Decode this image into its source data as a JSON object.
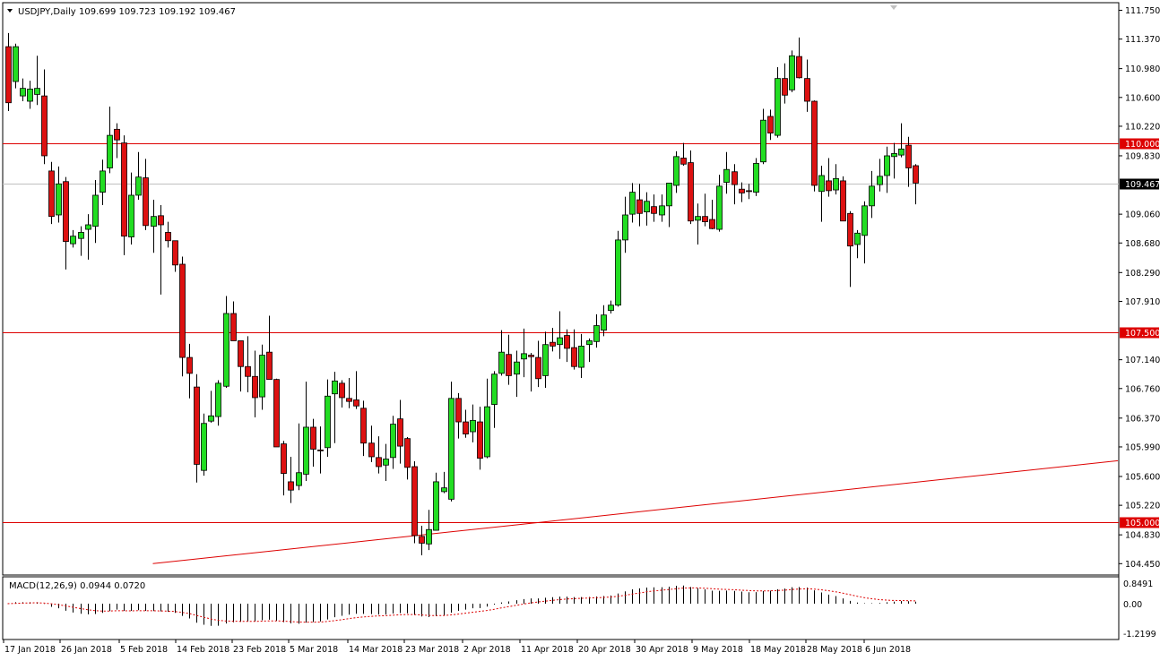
{
  "header": {
    "symbol_label": "USDJPY,Daily",
    "ohlc": "109.699 109.723 109.192 109.467"
  },
  "macd": {
    "label": "MACD(12,26,9) 0.0944 0.0720",
    "axis": [
      "0.8491",
      "0.00",
      "-1.2199"
    ]
  },
  "colors": {
    "bull": "#22dd22",
    "bear": "#dd1111",
    "level_line": "#dd0000",
    "trend_line": "#dd0000",
    "price_line": "#c0c0c0",
    "macd_hist": "#000000",
    "macd_signal": "#dd0000"
  },
  "chart_data": {
    "type": "candlestick",
    "symbol": "USDJPY",
    "timeframe": "Daily",
    "ylim": [
      104.3,
      111.85
    ],
    "price_ticks": [
      "111.750",
      "111.370",
      "110.980",
      "110.600",
      "110.220",
      "109.830",
      "109.060",
      "108.680",
      "108.290",
      "107.910",
      "107.140",
      "106.760",
      "106.370",
      "105.990",
      "105.600",
      "105.220",
      "104.830",
      "104.450"
    ],
    "date_labels": [
      "17 Jan 2018",
      "26 Jan 2018",
      "5 Feb 2018",
      "14 Feb 2018",
      "23 Feb 2018",
      "5 Mar 2018",
      "14 Mar 2018",
      "23 Mar 2018",
      "2 Apr 2018",
      "11 Apr 2018",
      "20 Apr 2018",
      "30 Apr 2018",
      "9 May 2018",
      "18 May 2018",
      "28 May 2018",
      "6 Jun 2018"
    ],
    "horizontal_levels": [
      "110.000",
      "107.500",
      "105.000"
    ],
    "current_price": "109.467",
    "trendline": [
      {
        "bar": 20,
        "price": 104.45
      },
      {
        "bar": 157,
        "price": 105.85
      }
    ],
    "candles": [
      [
        111.27,
        111.45,
        110.42,
        110.53
      ],
      [
        110.81,
        111.31,
        110.72,
        111.27
      ],
      [
        110.62,
        110.85,
        110.55,
        110.72
      ],
      [
        110.55,
        110.82,
        110.45,
        110.71
      ],
      [
        110.64,
        111.15,
        110.5,
        110.72
      ],
      [
        110.62,
        110.97,
        109.72,
        109.83
      ],
      [
        109.63,
        109.75,
        108.93,
        109.03
      ],
      [
        109.05,
        109.69,
        108.95,
        109.46
      ],
      [
        109.49,
        109.55,
        108.33,
        108.7
      ],
      [
        108.67,
        108.85,
        108.62,
        108.77
      ],
      [
        108.74,
        108.9,
        108.51,
        108.82
      ],
      [
        108.86,
        109.06,
        108.46,
        108.92
      ],
      [
        108.9,
        109.51,
        108.68,
        109.31
      ],
      [
        109.35,
        109.78,
        109.18,
        109.63
      ],
      [
        109.67,
        110.48,
        109.6,
        110.1
      ],
      [
        110.18,
        110.26,
        109.8,
        110.04
      ],
      [
        110.0,
        110.1,
        108.52,
        108.77
      ],
      [
        108.76,
        109.61,
        108.66,
        109.31
      ],
      [
        109.31,
        109.88,
        109.25,
        109.55
      ],
      [
        109.54,
        109.79,
        108.85,
        108.91
      ],
      [
        108.9,
        109.25,
        108.55,
        109.03
      ],
      [
        109.04,
        109.18,
        108.0,
        108.92
      ],
      [
        108.82,
        108.96,
        108.62,
        108.71
      ],
      [
        108.71,
        108.71,
        108.3,
        108.39
      ],
      [
        108.4,
        108.5,
        106.92,
        107.17
      ],
      [
        107.17,
        107.35,
        106.63,
        106.96
      ],
      [
        106.78,
        106.95,
        105.52,
        105.76
      ],
      [
        105.68,
        106.43,
        105.61,
        106.3
      ],
      [
        106.33,
        106.73,
        106.31,
        106.4
      ],
      [
        106.39,
        106.87,
        106.27,
        106.83
      ],
      [
        106.79,
        107.98,
        106.77,
        107.75
      ],
      [
        107.75,
        107.91,
        107.39,
        107.39
      ],
      [
        107.39,
        107.39,
        106.72,
        107.05
      ],
      [
        107.05,
        107.45,
        106.71,
        106.92
      ],
      [
        106.92,
        107.26,
        106.38,
        106.64
      ],
      [
        106.65,
        107.34,
        106.48,
        107.2
      ],
      [
        107.24,
        107.72,
        106.88,
        106.88
      ],
      [
        106.88,
        106.89,
        105.99,
        105.99
      ],
      [
        106.03,
        106.07,
        105.35,
        105.64
      ],
      [
        105.53,
        105.86,
        105.25,
        105.42
      ],
      [
        105.48,
        106.3,
        105.42,
        105.65
      ],
      [
        105.63,
        106.85,
        105.54,
        106.25
      ],
      [
        106.25,
        106.36,
        105.73,
        105.96
      ],
      [
        105.95,
        106.26,
        105.64,
        105.94
      ],
      [
        105.98,
        106.88,
        105.86,
        106.66
      ],
      [
        106.69,
        106.98,
        106.04,
        106.86
      ],
      [
        106.83,
        106.87,
        106.51,
        106.64
      ],
      [
        106.63,
        106.9,
        106.5,
        106.59
      ],
      [
        106.61,
        106.99,
        106.49,
        106.53
      ],
      [
        106.5,
        106.6,
        105.87,
        106.04
      ],
      [
        106.04,
        106.27,
        105.79,
        105.86
      ],
      [
        105.85,
        106.13,
        105.64,
        105.73
      ],
      [
        105.75,
        106.03,
        105.54,
        105.83
      ],
      [
        105.85,
        106.4,
        105.7,
        106.29
      ],
      [
        106.36,
        106.61,
        105.77,
        106.0
      ],
      [
        106.1,
        106.12,
        105.56,
        105.72
      ],
      [
        105.73,
        105.8,
        104.72,
        104.82
      ],
      [
        104.81,
        104.95,
        104.56,
        104.72
      ],
      [
        104.71,
        105.16,
        104.63,
        104.9
      ],
      [
        104.89,
        105.65,
        104.89,
        105.53
      ],
      [
        105.4,
        105.66,
        105.38,
        105.45
      ],
      [
        105.3,
        106.85,
        105.27,
        106.63
      ],
      [
        106.63,
        106.7,
        106.1,
        106.32
      ],
      [
        106.32,
        106.48,
        106.11,
        106.16
      ],
      [
        106.19,
        106.55,
        106.05,
        106.34
      ],
      [
        106.32,
        106.52,
        105.69,
        105.84
      ],
      [
        105.86,
        106.89,
        105.84,
        106.52
      ],
      [
        106.55,
        106.99,
        106.24,
        106.95
      ],
      [
        106.96,
        107.53,
        106.93,
        107.24
      ],
      [
        107.21,
        107.47,
        106.81,
        106.93
      ],
      [
        106.95,
        107.26,
        106.65,
        107.11
      ],
      [
        107.15,
        107.55,
        106.91,
        107.22
      ],
      [
        107.2,
        107.23,
        106.72,
        107.18
      ],
      [
        107.17,
        107.39,
        106.78,
        106.89
      ],
      [
        106.93,
        107.51,
        106.77,
        107.34
      ],
      [
        107.37,
        107.56,
        107.25,
        107.32
      ],
      [
        107.34,
        107.78,
        107.15,
        107.43
      ],
      [
        107.46,
        107.54,
        107.11,
        107.29
      ],
      [
        107.3,
        107.54,
        107.01,
        107.05
      ],
      [
        107.04,
        107.48,
        106.9,
        107.32
      ],
      [
        107.34,
        107.42,
        107.11,
        107.39
      ],
      [
        107.38,
        107.74,
        107.3,
        107.59
      ],
      [
        107.53,
        107.86,
        107.45,
        107.73
      ],
      [
        107.79,
        107.92,
        107.75,
        107.86
      ],
      [
        107.86,
        108.84,
        107.84,
        108.72
      ],
      [
        108.72,
        109.29,
        108.55,
        109.05
      ],
      [
        109.06,
        109.47,
        108.95,
        109.35
      ],
      [
        109.25,
        109.46,
        108.9,
        109.07
      ],
      [
        109.09,
        109.35,
        108.91,
        109.23
      ],
      [
        109.16,
        109.32,
        108.96,
        109.07
      ],
      [
        109.05,
        109.32,
        108.96,
        109.17
      ],
      [
        109.17,
        109.44,
        108.89,
        109.47
      ],
      [
        109.44,
        109.89,
        109.34,
        109.82
      ],
      [
        109.8,
        110.0,
        109.7,
        109.72
      ],
      [
        109.74,
        109.9,
        108.93,
        108.97
      ],
      [
        108.98,
        109.2,
        108.66,
        109.03
      ],
      [
        109.03,
        109.33,
        108.9,
        108.96
      ],
      [
        108.99,
        109.25,
        108.86,
        108.87
      ],
      [
        108.86,
        109.58,
        108.83,
        109.43
      ],
      [
        109.48,
        109.88,
        109.33,
        109.65
      ],
      [
        109.62,
        109.72,
        109.19,
        109.45
      ],
      [
        109.39,
        109.48,
        109.22,
        109.34
      ],
      [
        109.37,
        109.46,
        109.26,
        109.36
      ],
      [
        109.35,
        109.8,
        109.3,
        109.73
      ],
      [
        109.75,
        110.45,
        109.72,
        110.3
      ],
      [
        110.35,
        110.44,
        110.04,
        110.13
      ],
      [
        110.1,
        111.0,
        110.07,
        110.85
      ],
      [
        110.85,
        111.05,
        110.52,
        110.63
      ],
      [
        110.7,
        111.22,
        110.67,
        111.15
      ],
      [
        111.14,
        111.39,
        110.85,
        110.86
      ],
      [
        110.85,
        111.1,
        110.41,
        110.55
      ],
      [
        110.55,
        110.56,
        109.36,
        109.44
      ],
      [
        109.36,
        109.7,
        108.96,
        109.57
      ],
      [
        109.5,
        109.8,
        109.29,
        109.37
      ],
      [
        109.38,
        109.72,
        109.32,
        109.53
      ],
      [
        109.5,
        109.56,
        108.97,
        108.97
      ],
      [
        109.07,
        109.1,
        108.1,
        108.64
      ],
      [
        108.66,
        108.85,
        108.48,
        108.81
      ],
      [
        108.78,
        109.23,
        108.41,
        109.17
      ],
      [
        109.17,
        109.63,
        109.01,
        109.43
      ],
      [
        109.45,
        109.79,
        109.36,
        109.56
      ],
      [
        109.57,
        109.95,
        109.34,
        109.83
      ],
      [
        109.82,
        110.0,
        109.53,
        109.86
      ],
      [
        109.84,
        110.26,
        109.81,
        109.92
      ],
      [
        109.97,
        110.08,
        109.42,
        109.67
      ],
      [
        109.7,
        109.72,
        109.19,
        109.47
      ]
    ]
  }
}
